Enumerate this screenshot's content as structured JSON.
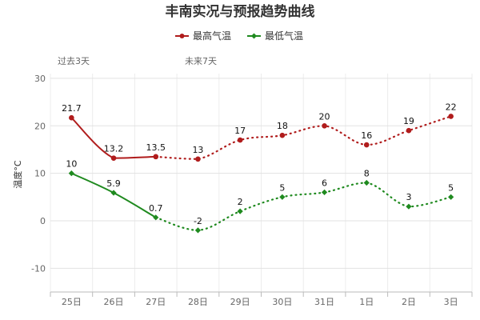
{
  "chart_data": {
    "type": "line",
    "title": "丰南实况与预报趋势曲线",
    "ylabel": "温度°C",
    "xlabel": "",
    "categories": [
      "25日",
      "26日",
      "27日",
      "28日",
      "29日",
      "30日",
      "31日",
      "1日",
      "2日",
      "3日"
    ],
    "ylim": [
      -15,
      31
    ],
    "yticks": [
      -10,
      0,
      10,
      20,
      30
    ],
    "grid": true,
    "legend_position": "top-center",
    "period_labels": {
      "past": "过去3天",
      "future": "未来7天"
    },
    "observed_count": 3,
    "series": [
      {
        "name": "最高气温",
        "color": "#b01c1c",
        "marker": "circle",
        "values": [
          21.7,
          13.2,
          13.5,
          13,
          17,
          18,
          20,
          16,
          19,
          22
        ],
        "labels": [
          "21.7",
          "13.2",
          "13.5",
          "13",
          "17",
          "18",
          "20",
          "16",
          "19",
          "22"
        ]
      },
      {
        "name": "最低气温",
        "color": "#1f8a1f",
        "marker": "diamond",
        "values": [
          10,
          5.9,
          0.7,
          -2,
          2,
          5,
          6,
          8,
          3,
          5
        ],
        "labels": [
          "10",
          "5.9",
          "0.7",
          "-2",
          "2",
          "5",
          "6",
          "8",
          "3",
          "5"
        ]
      }
    ]
  }
}
